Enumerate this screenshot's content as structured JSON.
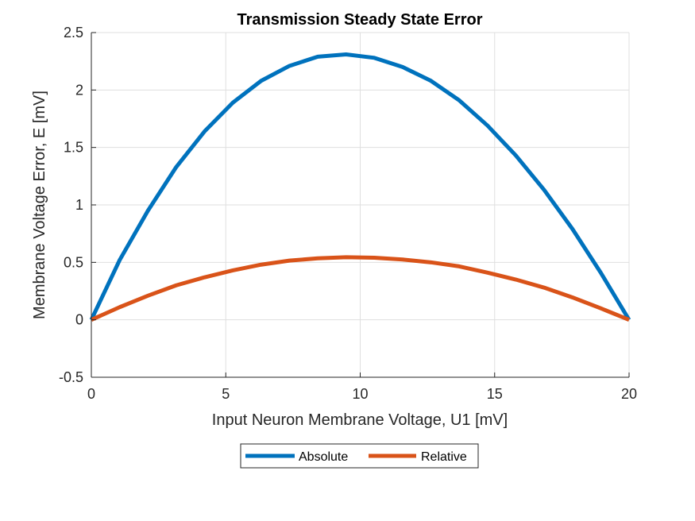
{
  "chart_data": {
    "type": "line",
    "title": "Transmission Steady State Error",
    "xlabel": "Input Neuron Membrane Voltage, U1 [mV]",
    "ylabel": "Membrane Voltage Error, E [mV]",
    "xlim": [
      0,
      20
    ],
    "ylim": [
      -0.5,
      2.5
    ],
    "xticks": [
      0,
      5,
      10,
      15,
      20
    ],
    "xtick_labels": [
      "0",
      "5",
      "10",
      "15",
      "20"
    ],
    "yticks": [
      -0.5,
      0,
      0.5,
      1,
      1.5,
      2,
      2.5
    ],
    "ytick_labels": [
      "-0.5",
      "0",
      "0.5",
      "1",
      "1.5",
      "2",
      "2.5"
    ],
    "grid": true,
    "legend_position": "bottom-center-outside",
    "series": [
      {
        "name": "Absolute",
        "color": "#0072BD",
        "x": [
          0,
          1.053,
          2.105,
          3.158,
          4.211,
          5.263,
          6.316,
          7.368,
          8.421,
          9.474,
          10.526,
          11.579,
          12.632,
          13.684,
          14.737,
          15.789,
          16.842,
          17.895,
          18.947,
          20
        ],
        "y": [
          0,
          0.52,
          0.95,
          1.33,
          1.64,
          1.89,
          2.08,
          2.21,
          2.29,
          2.31,
          2.28,
          2.2,
          2.08,
          1.91,
          1.69,
          1.43,
          1.13,
          0.79,
          0.41,
          0
        ]
      },
      {
        "name": "Relative",
        "color": "#D95319",
        "x": [
          0,
          1.053,
          2.105,
          3.158,
          4.211,
          5.263,
          6.316,
          7.368,
          8.421,
          9.474,
          10.526,
          11.579,
          12.632,
          13.684,
          14.737,
          15.789,
          16.842,
          17.895,
          18.947,
          20
        ],
        "y": [
          0,
          0.11,
          0.21,
          0.3,
          0.37,
          0.43,
          0.48,
          0.515,
          0.535,
          0.545,
          0.54,
          0.525,
          0.5,
          0.465,
          0.41,
          0.35,
          0.28,
          0.195,
          0.1,
          0
        ]
      }
    ]
  }
}
